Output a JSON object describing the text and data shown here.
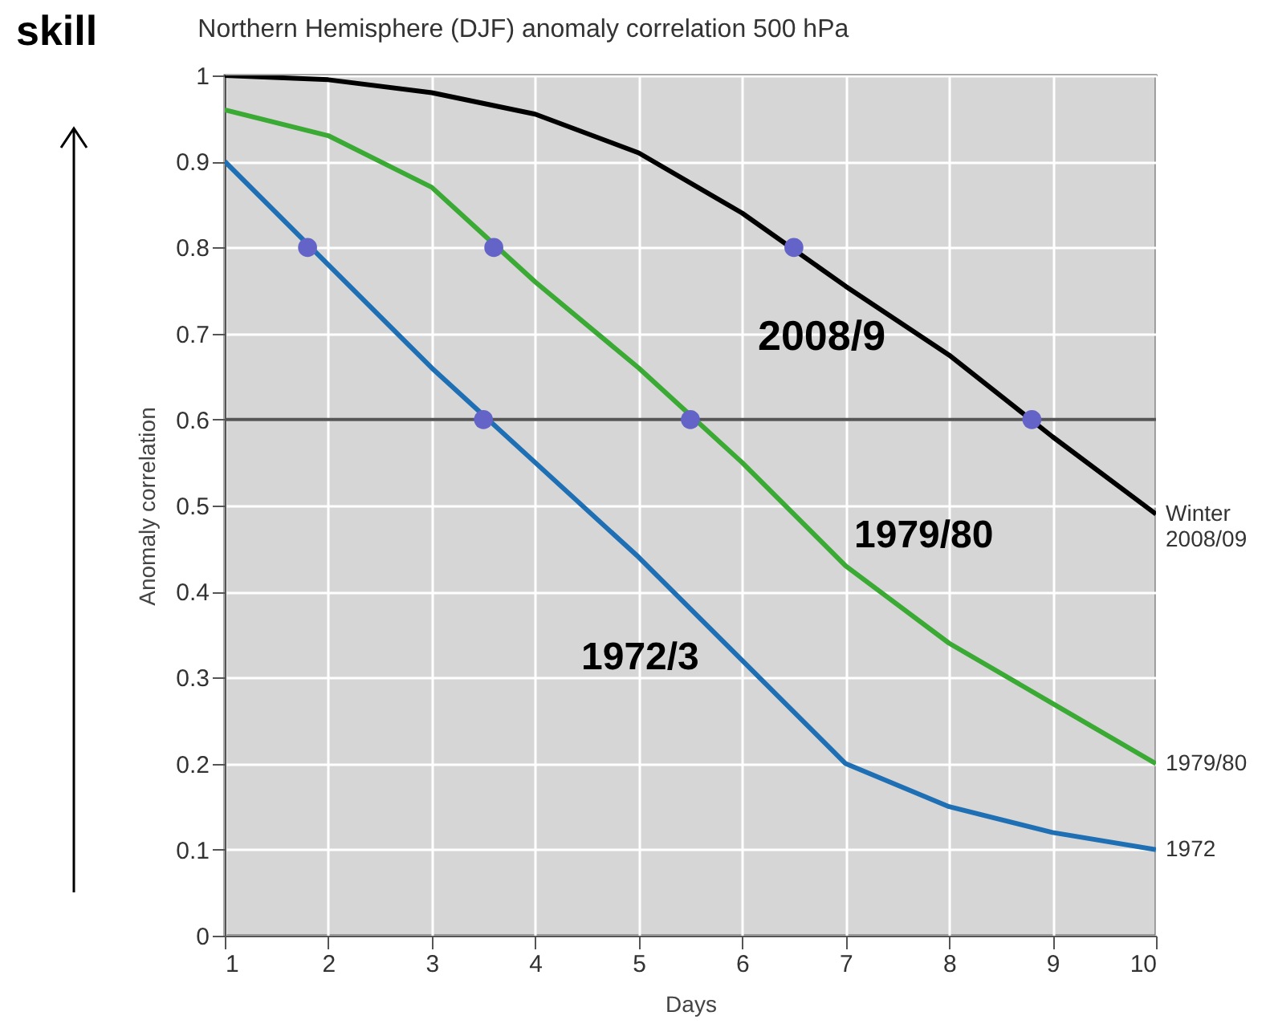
{
  "chart_data": {
    "type": "line",
    "title": "Northern Hemisphere (DJF) anomaly correlation 500 hPa",
    "xlabel": "Days",
    "ylabel": "Anomaly correlation",
    "x": [
      1,
      2,
      3,
      4,
      5,
      6,
      7,
      8,
      9,
      10
    ],
    "series": [
      {
        "name": "Winter 2008/09",
        "color": "#000000",
        "values": [
          1.0,
          0.995,
          0.98,
          0.955,
          0.91,
          0.84,
          0.755,
          0.675,
          0.58,
          0.49
        ]
      },
      {
        "name": "1979/80",
        "color": "#3aaa35",
        "values": [
          0.96,
          0.93,
          0.87,
          0.76,
          0.66,
          0.55,
          0.43,
          0.34,
          0.27,
          0.2
        ]
      },
      {
        "name": "1972",
        "color": "#1f6fb4",
        "values": [
          0.9,
          0.78,
          0.66,
          0.55,
          0.44,
          0.32,
          0.2,
          0.15,
          0.12,
          0.1
        ]
      },
      {
        "type": "scatter",
        "marker": "circle",
        "color": "#6464c8",
        "x": [
          1.8,
          3.6,
          6.5,
          3.5,
          5.5,
          8.8
        ],
        "values": [
          0.8,
          0.8,
          0.8,
          0.6,
          0.6,
          0.6
        ]
      }
    ],
    "xlim": [
      1,
      10
    ],
    "xticks": [
      1,
      2,
      3,
      4,
      5,
      6,
      7,
      8,
      9,
      10
    ],
    "ylim": [
      0,
      1
    ],
    "yticks": [
      0,
      0.1,
      0.2,
      0.3,
      0.4,
      0.5,
      0.6,
      0.7,
      0.8,
      0.9,
      1
    ],
    "ref_lines": [
      {
        "axis": "y",
        "value": 0.6,
        "color": "#555555"
      }
    ],
    "annotations": [
      "2008/9",
      "1979/80",
      "1972/3",
      "skill"
    ],
    "grid": true,
    "marker": "none",
    "line_style": "solid"
  }
}
